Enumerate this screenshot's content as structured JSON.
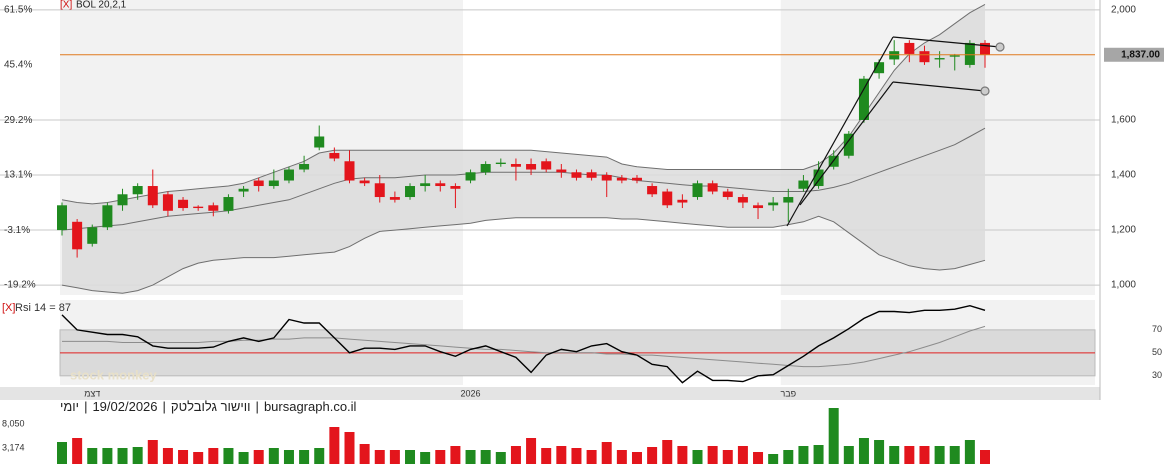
{
  "chart_data": [
    {
      "type": "candlestick",
      "indicator_label": "BOL 20,2,1",
      "remove_icon": "[X]",
      "categories": [
        null,
        null,
        "דצמ",
        null,
        null,
        null,
        null,
        null,
        null,
        null,
        null,
        null,
        null,
        null,
        null,
        null,
        null,
        null,
        null,
        null,
        null,
        null,
        null,
        null,
        null,
        null,
        null,
        "2026",
        null,
        null,
        null,
        null,
        null,
        null,
        null,
        null,
        null,
        null,
        null,
        null,
        null,
        null,
        null,
        null,
        null,
        null,
        null,
        null,
        "פבר",
        null,
        null,
        null,
        null,
        null,
        null,
        null,
        null,
        null,
        null,
        null,
        null,
        null
      ],
      "open": [
        1200,
        1230,
        1150,
        1210,
        1290,
        1330,
        1360,
        1330,
        1310,
        1285,
        1290,
        1270,
        1340,
        1380,
        1360,
        1380,
        1420,
        1500,
        1480,
        1450,
        1380,
        1370,
        1320,
        1320,
        1360,
        1370,
        1360,
        1380,
        1410,
        1440,
        1440,
        1440,
        1450,
        1420,
        1410,
        1410,
        1400,
        1390,
        1390,
        1360,
        1340,
        1310,
        1320,
        1370,
        1340,
        1320,
        1290,
        1290,
        1300,
        1350,
        1360,
        1430,
        1470,
        1600,
        1770,
        1820,
        1880,
        1850,
        1820,
        1830,
        1800,
        1880
      ],
      "high": [
        1300,
        1240,
        1220,
        1300,
        1350,
        1370,
        1420,
        1340,
        1320,
        1290,
        1300,
        1330,
        1360,
        1390,
        1420,
        1430,
        1470,
        1580,
        1500,
        1490,
        1390,
        1400,
        1340,
        1370,
        1400,
        1380,
        1370,
        1420,
        1450,
        1460,
        1460,
        1460,
        1460,
        1440,
        1420,
        1420,
        1410,
        1400,
        1400,
        1370,
        1350,
        1330,
        1380,
        1380,
        1350,
        1330,
        1300,
        1320,
        1350,
        1400,
        1450,
        1490,
        1560,
        1760,
        1820,
        1890,
        1890,
        1870,
        1850,
        1840,
        1890,
        1890
      ],
      "low": [
        1180,
        1100,
        1140,
        1200,
        1270,
        1310,
        1280,
        1250,
        1270,
        1270,
        1250,
        1260,
        1320,
        1340,
        1350,
        1370,
        1410,
        1490,
        1450,
        1370,
        1360,
        1300,
        1300,
        1310,
        1340,
        1340,
        1280,
        1370,
        1400,
        1430,
        1380,
        1400,
        1410,
        1390,
        1380,
        1380,
        1320,
        1370,
        1370,
        1320,
        1280,
        1280,
        1310,
        1330,
        1310,
        1280,
        1240,
        1270,
        1230,
        1340,
        1350,
        1420,
        1460,
        1590,
        1750,
        1800,
        1810,
        1800,
        1790,
        1780,
        1790,
        1790
      ],
      "close": [
        1290,
        1130,
        1210,
        1290,
        1330,
        1360,
        1290,
        1270,
        1280,
        1280,
        1270,
        1320,
        1350,
        1360,
        1380,
        1420,
        1440,
        1540,
        1460,
        1380,
        1370,
        1320,
        1310,
        1360,
        1370,
        1360,
        1350,
        1410,
        1440,
        1445,
        1430,
        1420,
        1420,
        1410,
        1390,
        1390,
        1380,
        1380,
        1380,
        1330,
        1290,
        1300,
        1370,
        1340,
        1320,
        1300,
        1280,
        1300,
        1320,
        1380,
        1420,
        1470,
        1550,
        1750,
        1810,
        1850,
        1840,
        1810,
        1825,
        1835,
        1880,
        1837
      ],
      "bands": {
        "upper": [
          1310,
          1300,
          1295,
          1300,
          1310,
          1320,
          1330,
          1340,
          1345,
          1350,
          1355,
          1360,
          1370,
          1390,
          1410,
          1430,
          1450,
          1480,
          1490,
          1490,
          1490,
          1490,
          1490,
          1490,
          1490,
          1490,
          1490,
          1490,
          1490,
          1490,
          1490,
          1490,
          1485,
          1480,
          1475,
          1470,
          1465,
          1440,
          1430,
          1425,
          1420,
          1420,
          1420,
          1420,
          1420,
          1420,
          1420,
          1420,
          1420,
          1420,
          1440,
          1480,
          1540,
          1620,
          1700,
          1780,
          1840,
          1880,
          1910,
          1950,
          1990,
          2020
        ],
        "middle": [
          1200,
          1205,
          1210,
          1215,
          1220,
          1230,
          1240,
          1250,
          1255,
          1260,
          1265,
          1270,
          1280,
          1290,
          1300,
          1310,
          1330,
          1350,
          1370,
          1385,
          1390,
          1390,
          1390,
          1395,
          1400,
          1400,
          1400,
          1405,
          1410,
          1410,
          1410,
          1410,
          1410,
          1410,
          1405,
          1400,
          1400,
          1390,
          1380,
          1375,
          1370,
          1365,
          1360,
          1360,
          1355,
          1350,
          1345,
          1340,
          1340,
          1340,
          1345,
          1355,
          1370,
          1390,
          1410,
          1430,
          1450,
          1470,
          1490,
          1510,
          1540,
          1570
        ],
        "lower": [
          1000,
          990,
          980,
          975,
          970,
          980,
          1000,
          1030,
          1060,
          1080,
          1090,
          1095,
          1100,
          1100,
          1100,
          1105,
          1110,
          1115,
          1120,
          1140,
          1170,
          1195,
          1200,
          1205,
          1210,
          1215,
          1220,
          1225,
          1235,
          1240,
          1245,
          1245,
          1245,
          1245,
          1245,
          1245,
          1245,
          1240,
          1240,
          1235,
          1230,
          1225,
          1220,
          1215,
          1210,
          1210,
          1210,
          1210,
          1220,
          1230,
          1250,
          1230,
          1190,
          1150,
          1110,
          1090,
          1070,
          1060,
          1055,
          1060,
          1075,
          1090
        ]
      },
      "last_price": {
        "value": 1837,
        "label": "1,837.00"
      },
      "ylim": [
        964,
        2036
      ],
      "yticks": [
        {
          "value": 1000,
          "label": "1,000"
        },
        {
          "value": 1200,
          "label": "1,200"
        },
        {
          "value": 1400,
          "label": "1,400"
        },
        {
          "value": 1600,
          "label": "1,600"
        },
        {
          "value": 2000,
          "label": "2,000"
        }
      ],
      "y2lim": [
        -22.13,
        64.46
      ],
      "y2ticks": [
        {
          "value": -19.2,
          "label": "-19.2%"
        },
        {
          "value": -3.1,
          "label": "-3.1%"
        },
        {
          "value": 13.1,
          "label": "13.1%"
        },
        {
          "value": 29.2,
          "label": "29.2%"
        },
        {
          "value": 45.4,
          "label": "45.4%"
        },
        {
          "value": 61.5,
          "label": "61.5%"
        }
      ],
      "grid": true,
      "up_color": "#1f8a1f",
      "down_color": "#e3151c",
      "band_fill": "#dcdcdc",
      "band_line": "#6f6f6f",
      "last_price_color": "#e07b1f"
    },
    {
      "type": "line",
      "label": "Rsi 14 = 87",
      "remove_icon": "[X]",
      "watermark": "stock monkey",
      "values": [
        83,
        70,
        68,
        66,
        66,
        64,
        56,
        54,
        54,
        54,
        55,
        60,
        63,
        60,
        63,
        79,
        76,
        76,
        63,
        50,
        54,
        54,
        53,
        56,
        56,
        51,
        47,
        53,
        56,
        51,
        46,
        33,
        48,
        53,
        51,
        56,
        58,
        51,
        48,
        40,
        38,
        24,
        34,
        26,
        26,
        25,
        30,
        31,
        39,
        47,
        56,
        63,
        71,
        80,
        86,
        86,
        85,
        87,
        87,
        88,
        91,
        87
      ],
      "signal": [
        60,
        60,
        60,
        60,
        59,
        59,
        59,
        59,
        59,
        59,
        60,
        60,
        61,
        61,
        62,
        62,
        63,
        63,
        63,
        62,
        61,
        60,
        59,
        58,
        57,
        56,
        55,
        54,
        53,
        53,
        52,
        51,
        50,
        50,
        50,
        50,
        49,
        49,
        48,
        48,
        47,
        46,
        45,
        44,
        43,
        42,
        41,
        40,
        39,
        38,
        38,
        39,
        40,
        42,
        45,
        48,
        51,
        55,
        59,
        64,
        69,
        73
      ],
      "ylim": [
        22,
        96
      ],
      "yticks": [
        30,
        50,
        70
      ],
      "band": [
        30,
        70
      ],
      "midline": 50,
      "color": "#000000",
      "signal_color": "#8c8c8c",
      "midline_color": "#e02020",
      "band_color": "#dadada"
    },
    {
      "type": "bar",
      "title_parts": [
        "יומי",
        "|",
        "19/02/2026",
        "|",
        "ווישור גלובלטק",
        "|",
        "bursagraph.co.il"
      ],
      "values": [
        4422,
        5226,
        3216,
        3216,
        3216,
        3417,
        4824,
        3216,
        2814,
        2412,
        3216,
        3216,
        2412,
        2814,
        3216,
        2814,
        2814,
        3216,
        7437,
        6432,
        4020,
        2814,
        2814,
        2814,
        2412,
        2814,
        3618,
        2814,
        2814,
        2412,
        3618,
        5226,
        3216,
        3618,
        3216,
        2814,
        4422,
        2814,
        2412,
        3417,
        4824,
        3618,
        2814,
        3618,
        2814,
        3618,
        2412,
        2010,
        2814,
        3618,
        3819,
        11256,
        3618,
        5226,
        4824,
        3618,
        3618,
        3618,
        3618,
        3618,
        4824,
        2814
      ],
      "ylim": [
        0,
        12864
      ],
      "yticks": [
        {
          "value": 3174,
          "label": "3,174"
        },
        {
          "value": 8050,
          "label": "8,050"
        }
      ]
    }
  ]
}
